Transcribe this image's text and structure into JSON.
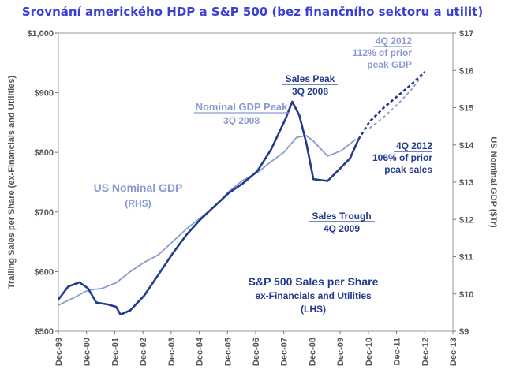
{
  "page_title": "Srovnání amerického HDP a S&P 500 (bez finančního sektoru a utilit)",
  "chart_data": {
    "type": "line",
    "title": "Srovnání amerického HDP a S&P 500 (bez finančního sektoru a utilit)",
    "xlabel": "",
    "ylabel_left": "Trailing Sales per Share (ex-Financials and Utilities)",
    "ylabel_right": "US Nominal GDP ($Tr)",
    "x_ticks": [
      "Dec-99",
      "Dec-00",
      "Dec-01",
      "Dec-02",
      "Dec-03",
      "Dec-04",
      "Dec-05",
      "Dec-06",
      "Dec-07",
      "Dec-08",
      "Dec-09",
      "Dec-10",
      "Dec-11",
      "Dec-12",
      "Dec-13"
    ],
    "xlim": [
      1999.95,
      2013.95
    ],
    "ylim_left": [
      500,
      1000
    ],
    "ylim_right": [
      9,
      17
    ],
    "y_left_ticks": [
      "$500",
      "$600",
      "$700",
      "$800",
      "$900",
      "$1,000"
    ],
    "y_right_ticks": [
      "$9",
      "$10",
      "$11",
      "$12",
      "$13",
      "$14",
      "$15",
      "$16",
      "$17"
    ],
    "series": [
      {
        "name": "US Nominal GDP (RHS)",
        "axis": "right",
        "color": "#8a9ad0",
        "x": [
          1999.95,
          2000.5,
          2001.0,
          2001.5,
          2002.0,
          2002.5,
          2003.0,
          2003.5,
          2004.0,
          2004.5,
          2005.0,
          2005.5,
          2006.0,
          2006.5,
          2007.0,
          2007.5,
          2007.95,
          2008.4,
          2008.75,
          2009.0,
          2009.5,
          2010.0,
          2010.5,
          2011.0,
          2011.5,
          2012.0,
          2012.5,
          2012.95
        ],
        "y": [
          9.7,
          9.9,
          10.1,
          10.15,
          10.3,
          10.6,
          10.85,
          11.05,
          11.4,
          11.75,
          12.05,
          12.35,
          12.75,
          13.05,
          13.25,
          13.55,
          13.8,
          14.2,
          14.25,
          14.1,
          13.7,
          13.85,
          14.15,
          14.45,
          14.75,
          15.1,
          15.5,
          15.95
        ],
        "projection_from_x": 2010.95
      },
      {
        "name": "S&P 500 Sales per Share ex-Financials and Utilities (LHS)",
        "axis": "left",
        "color": "#243a8c",
        "x": [
          1999.95,
          2000.3,
          2000.7,
          2001.0,
          2001.3,
          2001.7,
          2002.0,
          2002.15,
          2002.5,
          2003.0,
          2003.5,
          2004.0,
          2004.5,
          2005.0,
          2005.5,
          2006.0,
          2006.5,
          2007.0,
          2007.5,
          2008.0,
          2008.25,
          2008.5,
          2008.75,
          2009.0,
          2009.5,
          2009.95,
          2010.3,
          2010.6,
          2011.0,
          2011.5,
          2012.0,
          2012.5,
          2012.95
        ],
        "y": [
          553,
          575,
          582,
          572,
          548,
          545,
          541,
          528,
          535,
          560,
          595,
          630,
          662,
          688,
          710,
          732,
          748,
          768,
          805,
          855,
          885,
          862,
          815,
          755,
          752,
          773,
          790,
          822,
          852,
          875,
          895,
          915,
          935
        ],
        "projection_from_x": 2010.6
      }
    ],
    "annotations": [
      {
        "id": "gdp-label",
        "lines": [
          "US Nominal GDP",
          "(RHS)"
        ]
      },
      {
        "id": "gdp-peak",
        "lines": [
          "Nominal GDP Peak",
          "3Q 2008"
        ]
      },
      {
        "id": "sales-peak",
        "lines": [
          "Sales Peak",
          "3Q 2008"
        ]
      },
      {
        "id": "gdp-4q2012",
        "lines": [
          "4Q 2012",
          "112% of prior",
          "peak GDP"
        ]
      },
      {
        "id": "sales-4q2012",
        "lines": [
          "4Q 2012",
          "106% of prior",
          "peak sales"
        ]
      },
      {
        "id": "sales-trough",
        "lines": [
          "Sales Trough",
          "4Q 2009"
        ]
      },
      {
        "id": "sp500-label",
        "lines": [
          "S&P 500 Sales per Share",
          "ex-Financials and Utilities",
          "(LHS)"
        ]
      }
    ]
  }
}
